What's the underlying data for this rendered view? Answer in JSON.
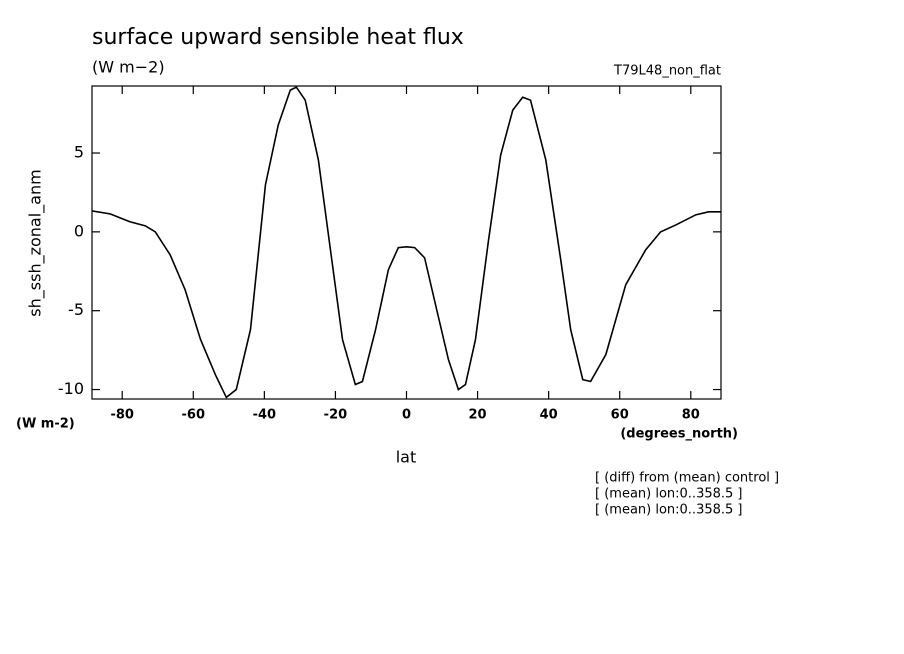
{
  "chart_data": {
    "type": "line",
    "title": "surface upward sensible heat flux",
    "subtitle": "(W m−2)",
    "dataset_label": "T79L48_non_flat",
    "y_label": "sh_ssh_zonal_anm",
    "y_units": "(W m-2)",
    "x_label": "lat",
    "x_units": "(degrees_north)",
    "notes": [
      "[ (diff) from (mean) control ]",
      "[ (mean) lon:0..358.5 ]",
      "[ (mean) lon:0..358.5 ]"
    ],
    "color": "#000000",
    "x": [
      -88.5,
      -83.4,
      -77.7,
      -73.5,
      -70.7,
      -66.5,
      -62.3,
      -58,
      -53.8,
      -50.7,
      -47.9,
      -43.9,
      -39.7,
      -36.1,
      -32.7,
      -31,
      -28.5,
      -24.8,
      -21.4,
      -18,
      -14.4,
      -12.4,
      -8.7,
      -5.1,
      -2.3,
      0,
      2.3,
      5.1,
      8.5,
      11.8,
      14.6,
      16.6,
      19.4,
      23.1,
      26.5,
      29.9,
      32.7,
      34.9,
      39.2,
      43.4,
      46.2,
      49.6,
      51.8,
      56.1,
      61.7,
      67.3,
      71.5,
      75.8,
      81.4,
      85,
      88.5
    ],
    "values": [
      1.33,
      1.14,
      0.63,
      0.38,
      0,
      -1.46,
      -3.67,
      -6.8,
      -9.05,
      -10.5,
      -10,
      -6.2,
      2.97,
      6.77,
      8.99,
      9.18,
      8.35,
      4.56,
      -1.14,
      -6.84,
      -9.68,
      -9.49,
      -6.2,
      -2.4,
      -1.0,
      -0.95,
      -1.0,
      -1.65,
      -4.94,
      -8.1,
      -10,
      -9.68,
      -6.84,
      -0.5,
      4.87,
      7.72,
      8.54,
      8.35,
      4.56,
      -1.77,
      -6.2,
      -9.37,
      -9.49,
      -7.78,
      -3.35,
      -1.14,
      0,
      0.44,
      1.08,
      1.27,
      1.27
    ],
    "xlim": [
      -88.5,
      88.5
    ],
    "ylim": [
      -10.6,
      9.25
    ],
    "xticks": [
      -80,
      -60,
      -40,
      -20,
      0,
      20,
      40,
      60,
      80
    ],
    "yticks": [
      -10,
      -5,
      0,
      5
    ]
  }
}
